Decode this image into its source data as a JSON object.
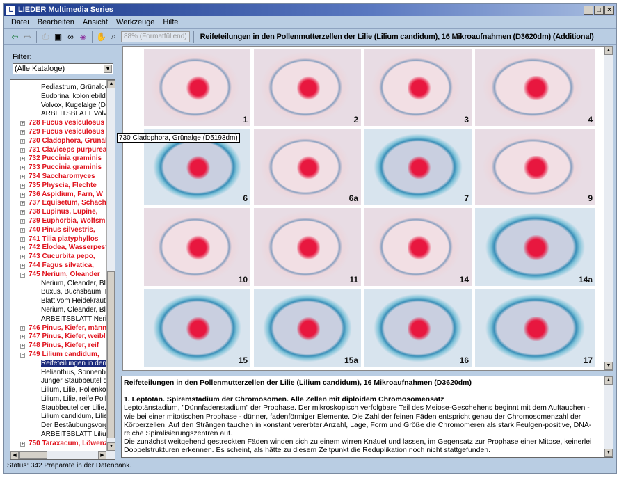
{
  "window": {
    "title": "LIEDER Multimedia Series",
    "app_icon": "L",
    "controls": [
      "_",
      "□",
      "×"
    ]
  },
  "menu": [
    "Datei",
    "Bearbeiten",
    "Ansicht",
    "Werkzeuge",
    "Hilfe"
  ],
  "toolbar": {
    "icons": [
      "back-arrow-icon",
      "forward-arrow-icon",
      "print-icon",
      "fullscreen-icon",
      "binoculars-icon",
      "book-icon",
      "hand-icon",
      "magnifier-icon"
    ],
    "zoom": "88% (Formatfüllend)",
    "document_title": "Reifeteilungen in den Pollenmutterzellen der Lilie (Lilium candidum), 16 Mikroaufnahmen (D3620dm) (Additional)"
  },
  "filter": {
    "label": "Filter:",
    "value": "(Alle Kataloge)"
  },
  "tree": {
    "tooltip": "730 Cladophora, Grünalge (D5193dm)",
    "rows": [
      {
        "t": "Pediastrum, Grünalge",
        "k": "child"
      },
      {
        "t": "Eudorina, koloniebildende",
        "k": "child"
      },
      {
        "t": "Volvox, Kugelalge (D",
        "k": "child"
      },
      {
        "t": "ARBEITSBLATT Volvox",
        "k": "child"
      },
      {
        "t": "728 Fucus vesiculosus",
        "k": "red"
      },
      {
        "t": "729 Fucus vesiculosus",
        "k": "red"
      },
      {
        "t": "730 Cladophora, Grünalge",
        "k": "red"
      },
      {
        "t": "731 Claviceps purpurea",
        "k": "red"
      },
      {
        "t": "732 Puccinia graminis",
        "k": "red"
      },
      {
        "t": "733 Puccinia graminis",
        "k": "red"
      },
      {
        "t": "734 Saccharomyces",
        "k": "red"
      },
      {
        "t": "735 Physcia, Flechte",
        "k": "red"
      },
      {
        "t": "736 Aspidium, Farn, W",
        "k": "red"
      },
      {
        "t": "737 Equisetum, Schachtelhalm",
        "k": "red"
      },
      {
        "t": "738 Lupinus, Lupine,",
        "k": "red"
      },
      {
        "t": "739 Euphorbia, Wolfsmilch",
        "k": "red"
      },
      {
        "t": "740  Pinus silvestris,",
        "k": "red"
      },
      {
        "t": "741 Tilia platyphyllos",
        "k": "red"
      },
      {
        "t": "742 Elodea, Wasserpest",
        "k": "red"
      },
      {
        "t": "743 Cucurbita pepo,",
        "k": "red"
      },
      {
        "t": "744 Fagus silvatica,",
        "k": "red"
      },
      {
        "t": "745 Nerium, Oleander",
        "k": "red",
        "open": true
      },
      {
        "t": "Nerium, Oleander, Bl",
        "k": "child"
      },
      {
        "t": "Buxus, Buchsbaum, B",
        "k": "child"
      },
      {
        "t": "Blatt vom Heidekraut",
        "k": "child"
      },
      {
        "t": "Nerium, Oleander, Bl",
        "k": "child"
      },
      {
        "t": "ARBEITSBLATT Nerium",
        "k": "child"
      },
      {
        "t": "746 Pinus, Kiefer, männl",
        "k": "red"
      },
      {
        "t": "747 Pinus, Kiefer, weibl",
        "k": "red"
      },
      {
        "t": "748 Pinus, Kiefer, reif",
        "k": "red"
      },
      {
        "t": "749 Lilium candidum,",
        "k": "red",
        "open": true
      },
      {
        "t": "Reifeteilungen in den",
        "k": "child",
        "sel": true
      },
      {
        "t": "Helianthus, Sonnenblume",
        "k": "child"
      },
      {
        "t": "Junger Staubbeutel d",
        "k": "child"
      },
      {
        "t": "Lilium, Lilie, Pollenkorn",
        "k": "child"
      },
      {
        "t": "Lilium, Lilie, reife Pollen",
        "k": "child"
      },
      {
        "t": "Staubbeutel der Lilie,",
        "k": "child"
      },
      {
        "t": "Lilium candidum, Lilie",
        "k": "child"
      },
      {
        "t": "Der Bestäubungsvorgang",
        "k": "child"
      },
      {
        "t": "ARBEITSBLATT Lilium",
        "k": "child"
      },
      {
        "t": "750 Taraxacum, Löwenzahn",
        "k": "red"
      }
    ]
  },
  "micrographs": [
    {
      "label": "1",
      "stain": "pink"
    },
    {
      "label": "2",
      "stain": "pink"
    },
    {
      "label": "3",
      "stain": "pink"
    },
    {
      "label": "4",
      "stain": "pink"
    },
    {
      "label": "6",
      "stain": "blue"
    },
    {
      "label": "6a",
      "stain": "pink"
    },
    {
      "label": "7",
      "stain": "blue"
    },
    {
      "label": "9",
      "stain": "pink"
    },
    {
      "label": "10",
      "stain": "pink"
    },
    {
      "label": "11",
      "stain": "pink"
    },
    {
      "label": "14",
      "stain": "pink"
    },
    {
      "label": "14a",
      "stain": "blue"
    },
    {
      "label": "15",
      "stain": "blue"
    },
    {
      "label": "15a",
      "stain": "blue"
    },
    {
      "label": "16",
      "stain": "blue"
    },
    {
      "label": "17",
      "stain": "blue"
    }
  ],
  "description": {
    "title": "Reifeteilungen in den Pollenmutterzellen der Lilie (Lilium candidum), 16 Mikroaufnahmen (D3620dm)",
    "heading": "1. Leptotän. Spiremstadium der Chromosomen. Alle Zellen mit diploidem Chromosomensatz",
    "p1": "Leptotänstadium, \"Dünnfadenstadium\" der Prophase. Der mikroskopisch verfolgbare Teil des Meiose-Geschehens beginnt mit dem Auftauchen - wie bei einer mitotischen Prophase - dünner, fadenförmiger Elemente. Die Zahl der feinen Fäden entspricht genau der Chromosomenzahl der Körperzellen. Auf den Strängen tauchen in konstant vererbter Anzahl, Lage, Form und Größe die Chromomeren als stark Feulgen-positive, DNA-reiche Spiralisierungszentren auf.",
    "p2": "Die zunächst weitgehend gestreckten Fäden winden sich zu einem wirren Knäuel und lassen, im Gegensatz zur Prophase einer Mitose, keinerlei Doppelstrukturen erkennen. Es scheint, als hätte zu diesem Zeitpunkt die Reduplikation noch nicht stattgefunden."
  },
  "status": "Status: 342 Präparate in der Datenbank."
}
